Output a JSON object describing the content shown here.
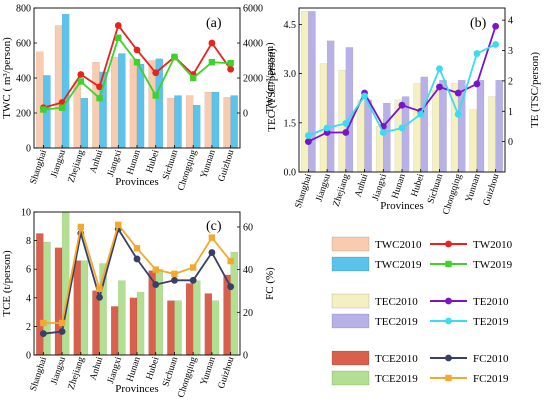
{
  "panels": {
    "a": {
      "tag": "(a)"
    },
    "b": {
      "tag": "(b)"
    },
    "c": {
      "tag": "(c)"
    }
  },
  "chart_data": [
    {
      "type": "bar",
      "panel": "a",
      "categories": [
        "Shanghai",
        "Jiangsu",
        "Zhejiang",
        "Anhui",
        "Jiangxi",
        "Hunan",
        "Hubei",
        "Sichuan",
        "Chongqing",
        "Yunnan",
        "Guizhou"
      ],
      "xlabel": "Provinces",
      "ylabel": "TWC ( m³/person)",
      "ylabel_right": "TW (m³/person)",
      "ylim": [
        0,
        800
      ],
      "yticks": [
        0,
        200,
        400,
        600,
        800
      ],
      "ylim_right": [
        -2000,
        6000
      ],
      "yticks_right": [
        0,
        2000,
        4000,
        6000
      ],
      "bar_series": [
        {
          "name": "TWC2010",
          "color": "#F9CCB0",
          "values": [
            550,
            700,
            375,
            490,
            520,
            510,
            500,
            285,
            300,
            320,
            290
          ]
        },
        {
          "name": "TWC2019",
          "color": "#5BC3EC",
          "values": [
            415,
            765,
            285,
            435,
            540,
            480,
            510,
            300,
            245,
            320,
            300
          ]
        }
      ],
      "line_series": [
        {
          "name": "TW2010",
          "color": "#E8231E",
          "marker": "circle",
          "values": [
            300,
            600,
            2200,
            1500,
            5000,
            3600,
            2300,
            3200,
            2200,
            4000,
            2500
          ]
        },
        {
          "name": "TW2019",
          "color": "#3ED22B",
          "marker": "square",
          "values": [
            200,
            300,
            1800,
            850,
            4300,
            2900,
            1000,
            3200,
            2000,
            2900,
            2850
          ]
        }
      ],
      "grid": false
    },
    {
      "type": "bar",
      "panel": "b",
      "categories": [
        "Shanghai",
        "Jiangsu",
        "Zhejiang",
        "Anhui",
        "Jiangxi",
        "Hunan",
        "Hubei",
        "Sichuan",
        "Chongqing",
        "Yunnan",
        "Guizhou"
      ],
      "xlabel": "Provinces",
      "ylabel": "TEC (TSC/person)",
      "ylabel_right": "TE (TSC/person)",
      "ylim": [
        0,
        5
      ],
      "yticks": [
        0.0,
        1.5,
        3.0,
        4.5
      ],
      "ytick_labels": [
        "0.0",
        "1.5",
        "3.0",
        "4.5"
      ],
      "ylim_right": [
        -1,
        4.4
      ],
      "yticks_right": [
        0,
        1,
        2,
        3,
        4
      ],
      "bar_series": [
        {
          "name": "TEC2010",
          "color": "#F5F0BF",
          "values": [
            4.9,
            3.3,
            3.1,
            2.2,
            1.4,
            2.2,
            2.7,
            2.5,
            2.7,
            1.9,
            2.3
          ]
        },
        {
          "name": "TEC2019",
          "color": "#B8B1E8",
          "values": [
            4.9,
            4.0,
            3.8,
            2.2,
            2.1,
            2.3,
            2.9,
            2.8,
            2.8,
            2.8,
            2.8
          ]
        }
      ],
      "line_series": [
        {
          "name": "TE2010",
          "color": "#7B14C8",
          "marker": "circle",
          "values": [
            0.0,
            0.3,
            0.3,
            1.6,
            0.5,
            1.2,
            1.0,
            1.8,
            1.6,
            1.9,
            3.8
          ]
        },
        {
          "name": "TE2019",
          "color": "#39DDF0",
          "marker": "circle",
          "values": [
            0.2,
            0.45,
            0.6,
            1.5,
            0.3,
            0.45,
            0.9,
            2.4,
            0.9,
            2.9,
            3.2
          ]
        }
      ],
      "grid": false
    },
    {
      "type": "bar",
      "panel": "c",
      "categories": [
        "Shanghai",
        "Jiangsu",
        "Zhejiang",
        "Anhui",
        "Jiangxi",
        "Hunan",
        "Hubei",
        "Sichuan",
        "Chongqing",
        "Yunnan",
        "Guizhou"
      ],
      "xlabel": "Provinces",
      "ylabel": "TCE (t/person)",
      "ylabel_right": "FC (%)",
      "ylim": [
        0,
        10
      ],
      "yticks": [
        0,
        2,
        4,
        6,
        8,
        10
      ],
      "ylim_right": [
        0,
        67
      ],
      "yticks_right": [
        0,
        20,
        40,
        60
      ],
      "bar_series": [
        {
          "name": "TCE2010",
          "color": "#D9604C",
          "values": [
            8.5,
            7.5,
            6.6,
            4.5,
            3.4,
            4.0,
            5.9,
            3.8,
            5.0,
            4.3,
            5.6
          ]
        },
        {
          "name": "TCE2019",
          "color": "#B3DF92",
          "values": [
            7.9,
            10.0,
            6.6,
            6.4,
            5.2,
            4.4,
            6.0,
            3.8,
            5.2,
            3.8,
            7.2
          ]
        }
      ],
      "line_series": [
        {
          "name": "FC2010",
          "color": "#3A3F66",
          "marker": "circle",
          "values": [
            10,
            11,
            57,
            27,
            59,
            45,
            33,
            35,
            35,
            48,
            32
          ]
        },
        {
          "name": "FC2019",
          "color": "#F2A92E",
          "marker": "square",
          "values": [
            15,
            15,
            60,
            31,
            61,
            50,
            40,
            38,
            41,
            55,
            44
          ]
        }
      ],
      "grid": false
    }
  ],
  "legend": {
    "groups": [
      [
        {
          "label": "TWC2010",
          "kind": "bar",
          "color": "#F9CCB0"
        },
        {
          "label": "TW2010",
          "kind": "line",
          "marker": "circle",
          "color": "#E8231E"
        },
        {
          "label": "TWC2019",
          "kind": "bar",
          "color": "#5BC3EC"
        },
        {
          "label": "TW2019",
          "kind": "line",
          "marker": "square",
          "color": "#3ED22B"
        }
      ],
      [
        {
          "label": "TEC2010",
          "kind": "bar",
          "color": "#F5F0BF"
        },
        {
          "label": "TE2010",
          "kind": "line",
          "marker": "circle",
          "color": "#7B14C8"
        },
        {
          "label": "TEC2019",
          "kind": "bar",
          "color": "#B8B1E8"
        },
        {
          "label": "TE2019",
          "kind": "line",
          "marker": "circle",
          "color": "#39DDF0"
        }
      ],
      [
        {
          "label": "TCE2010",
          "kind": "bar",
          "color": "#D9604C"
        },
        {
          "label": "FC2010",
          "kind": "line",
          "marker": "circle",
          "color": "#3A3F66"
        },
        {
          "label": "TCE2019",
          "kind": "bar",
          "color": "#B3DF92"
        },
        {
          "label": "FC2019",
          "kind": "line",
          "marker": "square",
          "color": "#F2A92E"
        }
      ]
    ]
  }
}
